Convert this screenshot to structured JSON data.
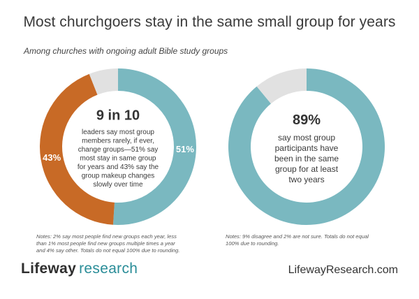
{
  "title": "Most churchgoers stay in the same small group for years",
  "subtitle": "Among churches with ongoing adult Bible study groups",
  "colors": {
    "teal": "#7ab8c0",
    "orange": "#c86a26",
    "gray": "#e1e1e1",
    "logo_accent": "#2a8d98"
  },
  "chart_data": [
    {
      "type": "pie",
      "donut": true,
      "slices": [
        {
          "value": 51,
          "label": "51%",
          "color": "#7ab8c0"
        },
        {
          "value": 43,
          "label": "43%",
          "color": "#c86a26"
        },
        {
          "value": 6,
          "label": "",
          "color": "#e1e1e1"
        }
      ],
      "center_headline": "9 in 10",
      "center_text": [
        "leaders say most group",
        "members rarely, if ever,",
        "change groups—51% say",
        "most stay in same group",
        "for years and 43% say the",
        "group makeup changes",
        "slowly over time"
      ],
      "note": [
        "Notes: 2% say most people find new groups each year, less",
        "than 1% most people find new groups multiple times a year",
        "and 4% say other. Totals do not equal 100% due to rounding."
      ]
    },
    {
      "type": "pie",
      "donut": true,
      "slices": [
        {
          "value": 89,
          "label": "",
          "color": "#7ab8c0"
        },
        {
          "value": 11,
          "label": "",
          "color": "#e1e1e1"
        }
      ],
      "center_headline": "89%",
      "center_text": [
        "say most group",
        "participants have",
        "been in the same",
        "group for at least",
        "two years"
      ],
      "note": [
        "Notes: 9% disagree and 2% are not sure. Totals do not equal",
        "100% due to rounding."
      ]
    }
  ],
  "footer": {
    "logo_word1": "Lifeway",
    "logo_word2": "research",
    "website": "LifewayResearch.com"
  }
}
